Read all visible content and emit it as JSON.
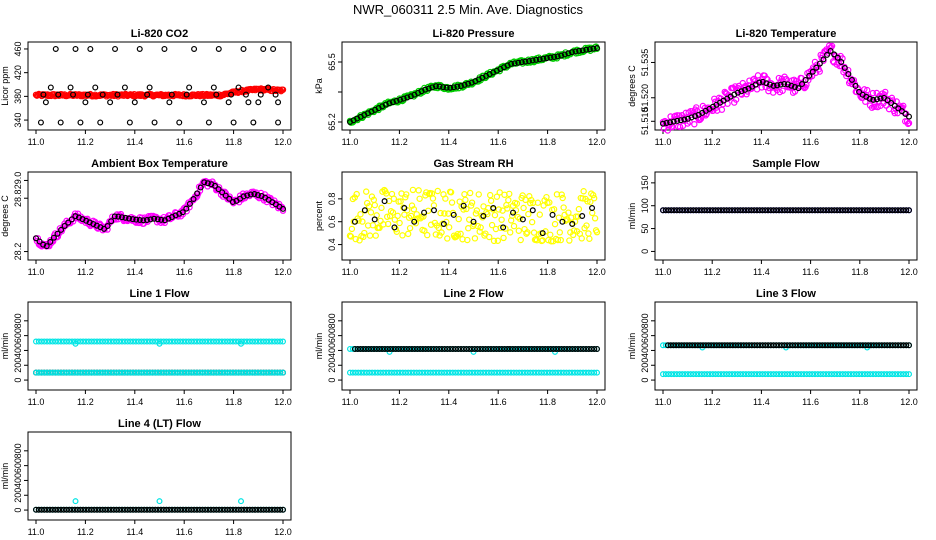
{
  "page_title": "NWR_060311  2.5 Min. Ave. Diagnostics",
  "chart_data": [
    {
      "id": "co2",
      "type": "scatter",
      "title": "Li-820 CO2",
      "ylabel": "Licor ppm",
      "xlim": [
        11.0,
        12.0
      ],
      "ylim": [
        330,
        465
      ],
      "yticks": [
        340,
        380,
        420,
        460
      ],
      "xticks": [
        "11.0",
        "11.2",
        "11.4",
        "11.6",
        "11.8",
        "12.0"
      ],
      "series": [
        {
          "name": "raw",
          "kind": "band",
          "color": "#ff0000",
          "x": [
            11.0,
            11.2,
            11.4,
            11.6,
            11.75,
            11.78,
            11.82,
            11.86,
            11.9,
            11.94,
            11.98
          ],
          "y": [
            382,
            382,
            382,
            382,
            382,
            385,
            388,
            390,
            392,
            391,
            390
          ],
          "jitter": 2
        },
        {
          "name": "avg",
          "kind": "points",
          "color": "#000000",
          "x": [
            11.02,
            11.08,
            11.1,
            11.16,
            11.18,
            11.22,
            11.26,
            11.32,
            11.38,
            11.42,
            11.48,
            11.52,
            11.58,
            11.64,
            11.7,
            11.74,
            11.8,
            11.84,
            11.88,
            11.92,
            11.96,
            11.98,
            11.04,
            11.06,
            11.14,
            11.2,
            11.24,
            11.3,
            11.36,
            11.4,
            11.46,
            11.54,
            11.62,
            11.68,
            11.72,
            11.78,
            11.82,
            11.86,
            11.9,
            11.94,
            11.98,
            11.03,
            11.09,
            11.15,
            11.21,
            11.27,
            11.33,
            11.45,
            11.55,
            11.61,
            11.73,
            11.79,
            11.85,
            11.91,
            11.97
          ],
          "y": [
            336,
            460,
            336,
            460,
            336,
            460,
            336,
            460,
            336,
            460,
            336,
            460,
            336,
            460,
            336,
            460,
            336,
            460,
            336,
            460,
            460,
            336,
            370,
            395,
            395,
            370,
            395,
            370,
            395,
            370,
            395,
            370,
            395,
            370,
            395,
            370,
            395,
            370,
            370,
            395,
            370,
            383,
            383,
            383,
            383,
            383,
            383,
            383,
            383,
            383,
            383,
            383,
            383,
            383,
            383
          ]
        }
      ]
    },
    {
      "id": "pressure",
      "type": "scatter",
      "title": "Li-820 Pressure",
      "ylabel": "kPa",
      "xlim": [
        11.0,
        12.0
      ],
      "ylim": [
        65.18,
        65.58
      ],
      "yticks": [
        65.2,
        65.35,
        65.5
      ],
      "ytick_labels": [
        "65.2",
        "",
        "65.5"
      ],
      "xticks": [
        "11.0",
        "11.2",
        "11.4",
        "11.6",
        "11.8",
        "12.0"
      ],
      "series": [
        {
          "name": "raw",
          "kind": "band",
          "color": "#00cc00",
          "x": [
            11.0,
            11.05,
            11.1,
            11.15,
            11.2,
            11.25,
            11.3,
            11.35,
            11.4,
            11.45,
            11.5,
            11.55,
            11.6,
            11.65,
            11.7,
            11.75,
            11.8,
            11.85,
            11.9,
            11.95,
            12.0
          ],
          "y": [
            65.2,
            65.23,
            65.26,
            65.29,
            65.31,
            65.33,
            65.36,
            65.38,
            65.37,
            65.38,
            65.4,
            65.43,
            65.46,
            65.49,
            65.5,
            65.51,
            65.52,
            65.53,
            65.55,
            65.56,
            65.57
          ],
          "jitter": 0.01
        },
        {
          "name": "avg",
          "kind": "line-points",
          "color": "#000000",
          "x": [
            11.0,
            11.05,
            11.1,
            11.15,
            11.2,
            11.25,
            11.3,
            11.35,
            11.4,
            11.45,
            11.5,
            11.55,
            11.6,
            11.65,
            11.7,
            11.75,
            11.8,
            11.85,
            11.9,
            11.95,
            12.0
          ],
          "y": [
            65.2,
            65.23,
            65.26,
            65.29,
            65.31,
            65.33,
            65.36,
            65.38,
            65.37,
            65.38,
            65.4,
            65.43,
            65.46,
            65.49,
            65.5,
            65.51,
            65.52,
            65.53,
            65.55,
            65.56,
            65.57
          ]
        }
      ]
    },
    {
      "id": "temperature",
      "type": "scatter",
      "title": "Li-820 Temperature",
      "ylabel": "degrees C",
      "xlim": [
        11.0,
        12.0
      ],
      "ylim": [
        51.508,
        51.542
      ],
      "yticks": [
        51.51,
        51.52,
        51.535
      ],
      "ytick_labels": [
        "51.510",
        "51.520",
        "51.535"
      ],
      "xticks": [
        "11.0",
        "11.2",
        "11.4",
        "11.6",
        "11.8",
        "12.0"
      ],
      "series": [
        {
          "name": "raw",
          "kind": "band",
          "color": "#ff00ff",
          "x": [
            11.0,
            11.05,
            11.1,
            11.15,
            11.2,
            11.25,
            11.3,
            11.35,
            11.4,
            11.45,
            11.5,
            11.55,
            11.6,
            11.65,
            11.68,
            11.72,
            11.76,
            11.8,
            11.85,
            11.9,
            11.95,
            12.0
          ],
          "y": [
            51.509,
            51.51,
            51.511,
            51.513,
            51.516,
            51.519,
            51.522,
            51.524,
            51.527,
            51.525,
            51.526,
            51.524,
            51.53,
            51.536,
            51.54,
            51.536,
            51.529,
            51.522,
            51.519,
            51.52,
            51.516,
            51.512
          ],
          "jitter": 0.0035
        },
        {
          "name": "avg",
          "kind": "line-points",
          "color": "#000000",
          "x": [
            11.0,
            11.05,
            11.1,
            11.15,
            11.2,
            11.25,
            11.3,
            11.35,
            11.4,
            11.45,
            11.5,
            11.55,
            11.6,
            11.65,
            11.68,
            11.72,
            11.76,
            11.8,
            11.85,
            11.9,
            11.95,
            12.0
          ],
          "y": [
            51.509,
            51.51,
            51.511,
            51.513,
            51.516,
            51.519,
            51.522,
            51.524,
            51.527,
            51.525,
            51.526,
            51.524,
            51.53,
            51.536,
            51.54,
            51.536,
            51.529,
            51.522,
            51.519,
            51.52,
            51.516,
            51.512
          ]
        }
      ]
    },
    {
      "id": "ambient",
      "type": "scatter",
      "title": "Ambient Box Temperature",
      "ylabel": "degrees C",
      "xlim": [
        11.0,
        12.0
      ],
      "ylim": [
        28.15,
        29.05
      ],
      "yticks": [
        28.2,
        28.8,
        29.0
      ],
      "ytick_labels": [
        "28.2",
        "28.8",
        "29.0"
      ],
      "xticks": [
        "11.0",
        "11.2",
        "11.4",
        "11.6",
        "11.8",
        "12.0"
      ],
      "series": [
        {
          "name": "raw",
          "kind": "band",
          "color": "#ff00ff",
          "x": [
            11.0,
            11.04,
            11.08,
            11.12,
            11.16,
            11.2,
            11.24,
            11.28,
            11.32,
            11.36,
            11.4,
            11.44,
            11.48,
            11.52,
            11.56,
            11.6,
            11.64,
            11.68,
            11.72,
            11.76,
            11.8,
            11.84,
            11.88,
            11.92,
            11.96,
            12.0
          ],
          "y": [
            28.35,
            28.25,
            28.38,
            28.5,
            28.6,
            28.55,
            28.5,
            28.45,
            28.6,
            28.58,
            28.56,
            28.55,
            28.57,
            28.55,
            28.6,
            28.65,
            28.8,
            28.98,
            28.95,
            28.85,
            28.75,
            28.82,
            28.85,
            28.82,
            28.75,
            28.68
          ],
          "jitter": 0.04
        },
        {
          "name": "avg",
          "kind": "line-points",
          "color": "#000000",
          "x": [
            11.0,
            11.04,
            11.08,
            11.12,
            11.16,
            11.2,
            11.24,
            11.28,
            11.32,
            11.36,
            11.4,
            11.44,
            11.48,
            11.52,
            11.56,
            11.6,
            11.64,
            11.68,
            11.72,
            11.76,
            11.8,
            11.84,
            11.88,
            11.92,
            11.96,
            12.0
          ],
          "y": [
            28.35,
            28.25,
            28.38,
            28.5,
            28.6,
            28.55,
            28.5,
            28.45,
            28.6,
            28.58,
            28.56,
            28.55,
            28.57,
            28.55,
            28.6,
            28.65,
            28.8,
            28.98,
            28.95,
            28.85,
            28.75,
            28.82,
            28.85,
            28.82,
            28.75,
            28.68
          ]
        }
      ]
    },
    {
      "id": "rh",
      "type": "scatter",
      "title": "Gas Stream RH",
      "ylabel": "percent",
      "xlim": [
        11.0,
        12.0
      ],
      "ylim": [
        0.3,
        1.0
      ],
      "yticks": [
        0.4,
        0.6,
        0.8
      ],
      "ytick_labels": [
        "0.4",
        "0.6",
        "0.8"
      ],
      "xticks": [
        "11.0",
        "11.2",
        "11.4",
        "11.6",
        "11.8",
        "12.0"
      ],
      "series": [
        {
          "name": "raw",
          "kind": "band",
          "color": "#ffff00",
          "x": [
            11.0,
            11.2,
            11.4,
            11.6,
            11.8,
            12.0
          ],
          "y": [
            0.65,
            0.68,
            0.66,
            0.65,
            0.64,
            0.66
          ],
          "jitter": 0.22
        },
        {
          "name": "avg",
          "kind": "points",
          "color": "#000000",
          "x": [
            11.02,
            11.06,
            11.1,
            11.14,
            11.18,
            11.22,
            11.26,
            11.3,
            11.34,
            11.38,
            11.42,
            11.46,
            11.5,
            11.54,
            11.58,
            11.62,
            11.66,
            11.7,
            11.74,
            11.78,
            11.82,
            11.86,
            11.9,
            11.94,
            11.98
          ],
          "y": [
            0.6,
            0.7,
            0.62,
            0.78,
            0.55,
            0.72,
            0.6,
            0.68,
            0.7,
            0.58,
            0.66,
            0.74,
            0.6,
            0.65,
            0.72,
            0.55,
            0.68,
            0.62,
            0.7,
            0.5,
            0.66,
            0.6,
            0.58,
            0.65,
            0.72
          ]
        }
      ]
    },
    {
      "id": "sample_flow",
      "type": "scatter",
      "title": "Sample Flow",
      "ylabel": "ml/min",
      "xlim": [
        11.0,
        12.0
      ],
      "ylim": [
        -10,
        165
      ],
      "yticks": [
        0,
        50,
        100,
        150
      ],
      "ytick_labels": [
        "0",
        "50",
        "100",
        "150"
      ],
      "xticks": [
        "11.0",
        "11.2",
        "11.4",
        "11.6",
        "11.8",
        "12.0"
      ],
      "series": [
        {
          "name": "raw",
          "kind": "flat",
          "color": "#0000ff",
          "y": 90
        },
        {
          "name": "avg",
          "kind": "flat",
          "color": "#000000",
          "y": 90
        }
      ]
    },
    {
      "id": "line1",
      "type": "scatter",
      "title": "Line 1 Flow",
      "ylabel": "ml/min",
      "xlim": [
        11.0,
        12.0
      ],
      "ylim": [
        -80,
        1000
      ],
      "yticks": [
        0,
        200,
        400,
        600,
        800
      ],
      "ytick_labels": [
        "0",
        "200",
        "400",
        "600",
        "800"
      ],
      "xticks": [
        "11.0",
        "11.2",
        "11.4",
        "11.6",
        "11.8",
        "12.0"
      ],
      "series": [
        {
          "name": "raw",
          "kind": "flat",
          "color": "#00e5e5",
          "y": 520,
          "dips": [
            11.16,
            11.5,
            11.83
          ],
          "dip_y": 490
        },
        {
          "name": "avg",
          "kind": "flat",
          "color": "#000000",
          "y": 100
        },
        {
          "name": "raw2",
          "kind": "flat",
          "color": "#00e5e5",
          "y": 100
        }
      ]
    },
    {
      "id": "line2",
      "type": "scatter",
      "title": "Line 2 Flow",
      "ylabel": "ml/min",
      "xlim": [
        11.0,
        12.0
      ],
      "ylim": [
        -80,
        1000
      ],
      "yticks": [
        0,
        200,
        400,
        600,
        800
      ],
      "ytick_labels": [
        "0",
        "200",
        "400",
        "600",
        "800"
      ],
      "xticks": [
        "11.0",
        "11.2",
        "11.4",
        "11.6",
        "11.8",
        "12.0"
      ],
      "series": [
        {
          "name": "raw",
          "kind": "flat",
          "color": "#00e5e5",
          "y": 100
        },
        {
          "name": "raw2",
          "kind": "flat",
          "color": "#00e5e5",
          "y": 420,
          "dips": [
            11.16,
            11.5,
            11.83
          ],
          "dip_y": 380
        },
        {
          "name": "avg",
          "kind": "flat",
          "color": "#000000",
          "y": 420,
          "x0": 11.02
        }
      ]
    },
    {
      "id": "line3",
      "type": "scatter",
      "title": "Line 3 Flow",
      "ylabel": "ml/min",
      "xlim": [
        11.0,
        12.0
      ],
      "ylim": [
        -80,
        1000
      ],
      "yticks": [
        0,
        200,
        400,
        600,
        800
      ],
      "ytick_labels": [
        "0",
        "200",
        "400",
        "600",
        "800"
      ],
      "xticks": [
        "11.0",
        "11.2",
        "11.4",
        "11.6",
        "11.8",
        "12.0"
      ],
      "series": [
        {
          "name": "raw",
          "kind": "flat",
          "color": "#00e5e5",
          "y": 80
        },
        {
          "name": "raw2",
          "kind": "flat",
          "color": "#00e5e5",
          "y": 470,
          "dips": [
            11.16,
            11.5,
            11.83
          ],
          "dip_y": 440
        },
        {
          "name": "avg",
          "kind": "flat",
          "color": "#000000",
          "y": 470,
          "x0": 11.02
        }
      ]
    },
    {
      "id": "line4",
      "type": "scatter",
      "title": "Line 4 (LT) Flow",
      "ylabel": "ml/min",
      "xlim": [
        11.0,
        12.0
      ],
      "ylim": [
        -80,
        1000
      ],
      "yticks": [
        0,
        200,
        400,
        600,
        800
      ],
      "ytick_labels": [
        "0",
        "200",
        "400",
        "600",
        "800"
      ],
      "xticks": [
        "11.0",
        "11.2",
        "11.4",
        "11.6",
        "11.8",
        "12.0"
      ],
      "series": [
        {
          "name": "raw",
          "kind": "flat",
          "color": "#00e5e5",
          "y": 5,
          "dips": [
            11.16,
            11.5,
            11.83
          ],
          "dip_y": 120
        },
        {
          "name": "avg",
          "kind": "flat",
          "color": "#000000",
          "y": 5
        }
      ]
    }
  ]
}
